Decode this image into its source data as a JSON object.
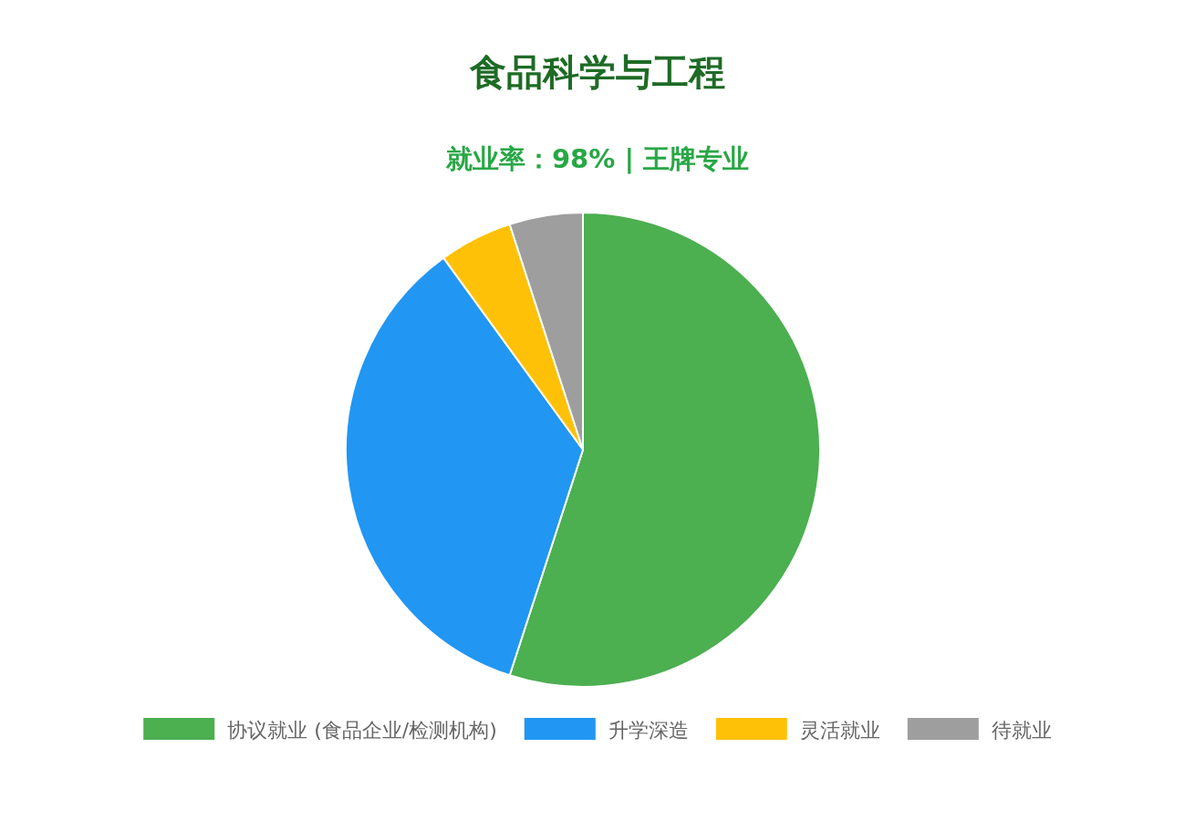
{
  "chart_data": {
    "type": "pie",
    "title": "食品科学与工程",
    "subtitle": "就业率：98% | 王牌专业",
    "categories": [
      "协议就业 (食品企业/检测机构)",
      "升学深造",
      "灵活就业",
      "待就业"
    ],
    "values": [
      55,
      35,
      5,
      5
    ],
    "colors": [
      "#4caf50",
      "#2196f3",
      "#ffc107",
      "#9e9e9e"
    ],
    "legend": "bottom"
  }
}
